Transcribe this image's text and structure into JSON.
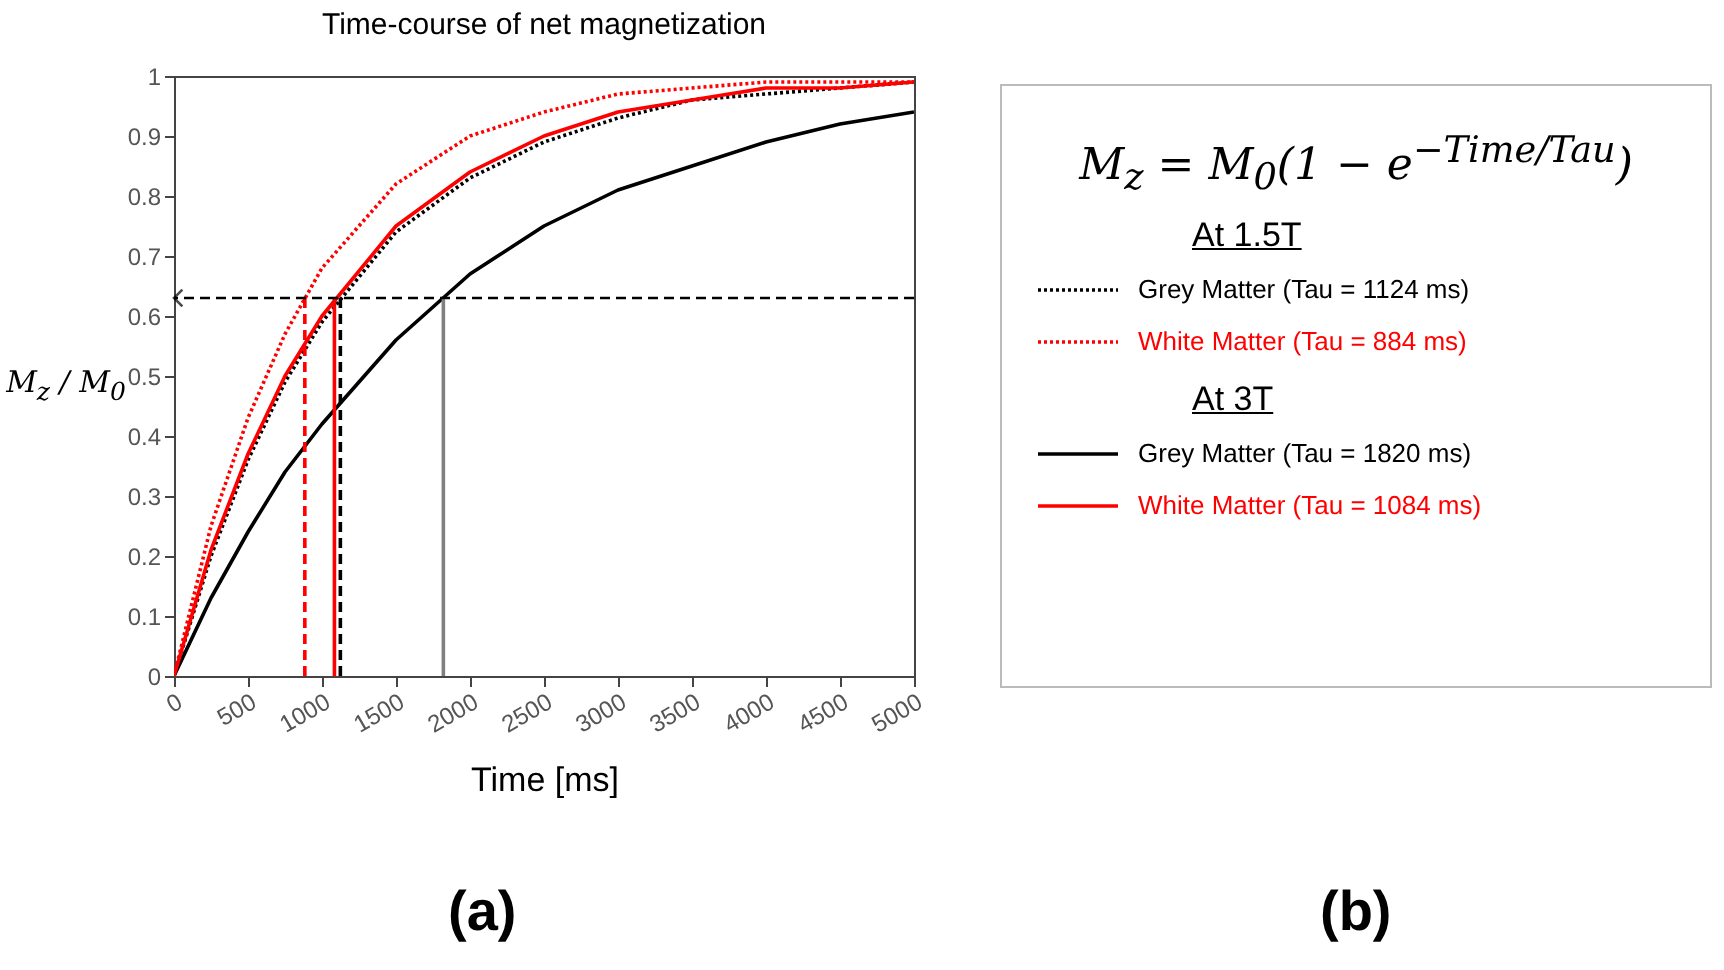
{
  "chart_data": {
    "type": "line",
    "title": "Time-course of net magnetization",
    "xlabel": "Time [ms]",
    "ylabel": "M$_{z}$ / M$_{0}$",
    "xlim": [
      0,
      5000
    ],
    "xticks": [
      0,
      500,
      1000,
      1500,
      2000,
      2500,
      3000,
      3500,
      4000,
      4500,
      5000
    ],
    "ylim": [
      0,
      1
    ],
    "yticks": [
      0,
      0.1,
      0.2,
      0.3,
      0.4,
      0.5,
      0.6,
      0.7,
      0.8,
      0.9,
      1
    ],
    "grid": false,
    "legend": "right",
    "marker": "none",
    "x": [
      0,
      250,
      500,
      750,
      1000,
      1500,
      2000,
      2500,
      3000,
      3500,
      4000,
      4500,
      5000
    ],
    "series": [
      {
        "name": "Grey Matter (Tau = 1124 ms)",
        "color": "#000000",
        "line_style": "dotted",
        "values": [
          0,
          0.2,
          0.36,
          0.49,
          0.59,
          0.74,
          0.83,
          0.89,
          0.93,
          0.96,
          0.97,
          0.98,
          0.99
        ]
      },
      {
        "name": "White Matter (Tau = 884 ms)",
        "color": "#ff0000",
        "line_style": "dotted",
        "values": [
          0,
          0.25,
          0.43,
          0.57,
          0.68,
          0.82,
          0.9,
          0.94,
          0.97,
          0.98,
          0.99,
          0.99,
          0.99
        ]
      },
      {
        "name": "Grey Matter (Tau = 1820 ms)",
        "color": "#000000",
        "line_style": "solid",
        "values": [
          0,
          0.13,
          0.24,
          0.34,
          0.42,
          0.56,
          0.67,
          0.75,
          0.81,
          0.85,
          0.89,
          0.92,
          0.94
        ]
      },
      {
        "name": "White Matter (Tau = 1084 ms)",
        "color": "#ff0000",
        "line_style": "solid",
        "values": [
          0,
          0.21,
          0.37,
          0.5,
          0.6,
          0.75,
          0.84,
          0.9,
          0.94,
          0.96,
          0.98,
          0.98,
          0.99
        ]
      },
      {
        "type": "line",
        "color": "#ff0000",
        "line_style": "dashed",
        "x": [
          884,
          884
        ],
        "values": [
          0,
          0.63
        ]
      },
      {
        "type": "line",
        "color": "#ff0000",
        "line_style": "solid",
        "x": [
          1084,
          1084
        ],
        "values": [
          0,
          0.63
        ]
      },
      {
        "type": "line",
        "color": "#000000",
        "line_style": "dashed",
        "x": [
          1124,
          1124
        ],
        "values": [
          0,
          0.63
        ]
      },
      {
        "type": "line",
        "color": "#808080",
        "line_style": "solid",
        "x": [
          1820,
          1820
        ],
        "values": [
          0,
          0.63
        ]
      }
    ],
    "ref_lines": [
      {
        "axis": "y",
        "value": 0.63,
        "color": "#000000",
        "line_style": "dashed"
      }
    ],
    "annotations": [
      "M$_{z}$ = M$_{0}$(1 − e$^{−Time/Tau}$)",
      "At 1.5T",
      "At 3T",
      "(a)",
      "(b)"
    ]
  }
}
